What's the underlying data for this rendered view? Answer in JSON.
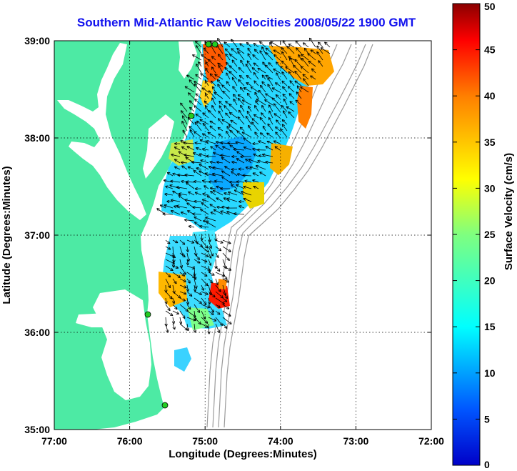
{
  "title": "Southern Mid-Atlantic Raw Velocities 2008/05/22 1900 GMT",
  "x_axis": {
    "label": "Longitude (Degrees:Minutes)",
    "ticks": [
      "77:00",
      "76:00",
      "75:00",
      "74:00",
      "73:00",
      "72:00"
    ]
  },
  "y_axis": {
    "label": "Latitude (Degrees:Minutes)",
    "ticks": [
      "39:00",
      "38:00",
      "37:00",
      "36:00",
      "35:00"
    ]
  },
  "colorbar": {
    "label": "Surface Velocity (cm/s)",
    "ticks": [
      "50",
      "45",
      "40",
      "35",
      "30",
      "25",
      "20",
      "15",
      "10",
      "5",
      "0"
    ],
    "range": [
      0,
      50
    ],
    "colormap": "jet"
  },
  "colors": {
    "land": "#4deaa4",
    "title": "#1111ee",
    "bathymetry": "#9a9a9a",
    "station": "#22cc22"
  },
  "chart_data": {
    "type": "heatmap",
    "xlim": [
      -77,
      -72
    ],
    "ylim": [
      35,
      39
    ],
    "grid": true
  }
}
